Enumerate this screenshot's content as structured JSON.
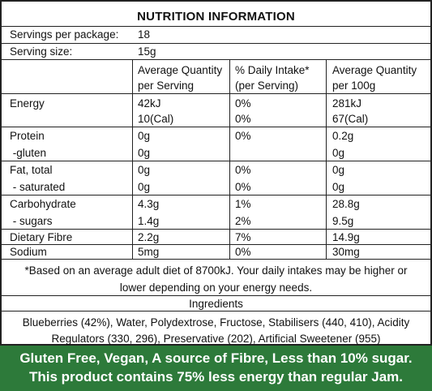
{
  "title": "NUTRITION INFORMATION",
  "servings": {
    "label": "Servings per package:",
    "value": "18"
  },
  "serving_size": {
    "label": "Serving size:",
    "value": "15g"
  },
  "columns": {
    "avg_serving_1": "Average Quantity",
    "avg_serving_2": "per Serving",
    "daily_1": "% Daily Intake*",
    "daily_2": "(per Serving)",
    "avg_100_1": "Average Quantity",
    "avg_100_2": "per 100g"
  },
  "rows": [
    {
      "name": "Energy",
      "serving": "42kJ",
      "daily": "0%",
      "per100": "281kJ"
    },
    {
      "name": "",
      "serving": "10(Cal)",
      "daily": "0%",
      "per100": "67(Cal)"
    },
    {
      "name": "Protein",
      "serving": "0g",
      "daily": "0%",
      "per100": "0.2g"
    },
    {
      "name": " -gluten",
      "serving": "0g",
      "daily": "",
      "per100": "0g"
    },
    {
      "name": "Fat, total",
      "serving": "0g",
      "daily": "0%",
      "per100": "0g"
    },
    {
      "name": " - saturated",
      "serving": "0g",
      "daily": "0%",
      "per100": "0g"
    },
    {
      "name": "Carbohydrate",
      "serving": "4.3g",
      "daily": "1%",
      "per100": "28.8g"
    },
    {
      "name": " - sugars",
      "serving": "1.4g",
      "daily": "2%",
      "per100": "9.5g"
    },
    {
      "name": "Dietary Fibre",
      "serving": "2.2g",
      "daily": "7%",
      "per100": "14.9g"
    },
    {
      "name": "Sodium",
      "serving": "5mg",
      "daily": "0%",
      "per100": "30mg"
    }
  ],
  "footnote_1": "*Based on an average adult diet of 8700kJ. Your daily intakes may be higher or",
  "footnote_2": "lower depending on your energy needs.",
  "ingredients_heading": "Ingredients",
  "ingredients_1": "Blueberries (42%), Water, Polydextrose, Fructose, Stabilisers (440, 410), Acidity",
  "ingredients_2": "Regulators (330, 296), Preservative (202), Artificial Sweetener (955)",
  "banner_1": "Gluten Free, Vegan, A source of Fibre, Less than 10% sugar.",
  "banner_2": "This product contains 75% less energy than regular Jam.",
  "colors": {
    "banner_bg": "#2d7a3a",
    "banner_text": "#ffffff",
    "border": "#222222"
  }
}
